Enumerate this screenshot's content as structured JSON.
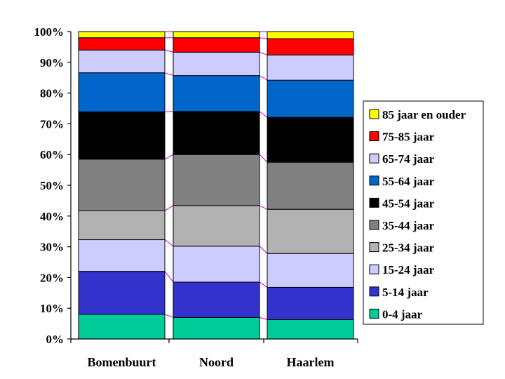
{
  "chart_data": {
    "type": "bar",
    "stacked": true,
    "percent": true,
    "categories": [
      "Bomenbuurt",
      "Noord",
      "Haarlem"
    ],
    "ylim": [
      0,
      100
    ],
    "yticks": [
      "0%",
      "10%",
      "20%",
      "30%",
      "40%",
      "50%",
      "60%",
      "70%",
      "80%",
      "90%",
      "100%"
    ],
    "legend_position": "right",
    "series": [
      {
        "name": "0-4 jaar",
        "color": "#00CC99",
        "values": [
          8,
          7,
          6.3
        ]
      },
      {
        "name": "5-14 jaar",
        "color": "#3333CC",
        "values": [
          14,
          11.5,
          10.5
        ]
      },
      {
        "name": "15-24 jaar",
        "color": "#CCCCFF",
        "values": [
          10.3,
          11.7,
          11
        ]
      },
      {
        "name": "25-34 jaar",
        "color": "#B2B2B2",
        "values": [
          9.5,
          13.2,
          14.4
        ]
      },
      {
        "name": "35-44 jaar",
        "color": "#808080",
        "values": [
          16.7,
          16.6,
          15.3
        ]
      },
      {
        "name": "45-54 jaar",
        "color": "#000000",
        "values": [
          15.4,
          14,
          14.6
        ]
      },
      {
        "name": "55-64 jaar",
        "color": "#0066CC",
        "values": [
          12.7,
          11.7,
          12.1
        ]
      },
      {
        "name": "65-74 jaar",
        "color": "#CCCCFF",
        "values": [
          7.4,
          7.6,
          8.2
        ]
      },
      {
        "name": "75-85 jaar",
        "color": "#FF0000",
        "values": [
          4,
          4.7,
          5.3
        ]
      },
      {
        "name": "85 jaar en ouder",
        "color": "#FFFF00",
        "values": [
          2,
          2,
          2.3
        ]
      }
    ],
    "series_line_color": "#CC00CC"
  }
}
